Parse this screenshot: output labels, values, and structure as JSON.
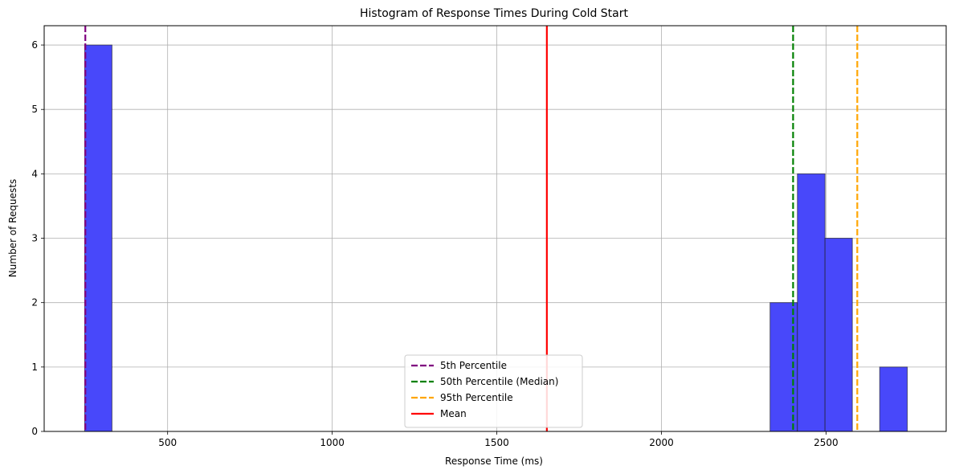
{
  "chart_data": {
    "type": "histogram",
    "title": "Histogram of Response Times During Cold Start",
    "xlabel": "Response Time (ms)",
    "ylabel": "Number of Requests",
    "xlim": [
      125,
      2865
    ],
    "ylim": [
      0,
      6.3
    ],
    "xticks": [
      500,
      1000,
      1500,
      2000,
      2500
    ],
    "yticks": [
      0,
      1,
      2,
      3,
      4,
      5,
      6
    ],
    "grid": true,
    "bins": [
      {
        "start": 248,
        "end": 331,
        "count": 6
      },
      {
        "start": 2330,
        "end": 2413,
        "count": 2
      },
      {
        "start": 2413,
        "end": 2497,
        "count": 4
      },
      {
        "start": 2497,
        "end": 2580,
        "count": 3
      },
      {
        "start": 2663,
        "end": 2747,
        "count": 1
      }
    ],
    "bar_color": "#4848fa",
    "lines": [
      {
        "name": "5th Percentile",
        "x": 250,
        "style": "dashed",
        "color": "#800080"
      },
      {
        "name": "50th Percentile (Median)",
        "x": 2400,
        "style": "dashed",
        "color": "#008000"
      },
      {
        "name": "95th Percentile",
        "x": 2595,
        "style": "dashed",
        "color": "#ffa500"
      },
      {
        "name": "Mean",
        "x": 1652,
        "style": "solid",
        "color": "#ff0000"
      }
    ],
    "legend_position": "lower-center"
  }
}
